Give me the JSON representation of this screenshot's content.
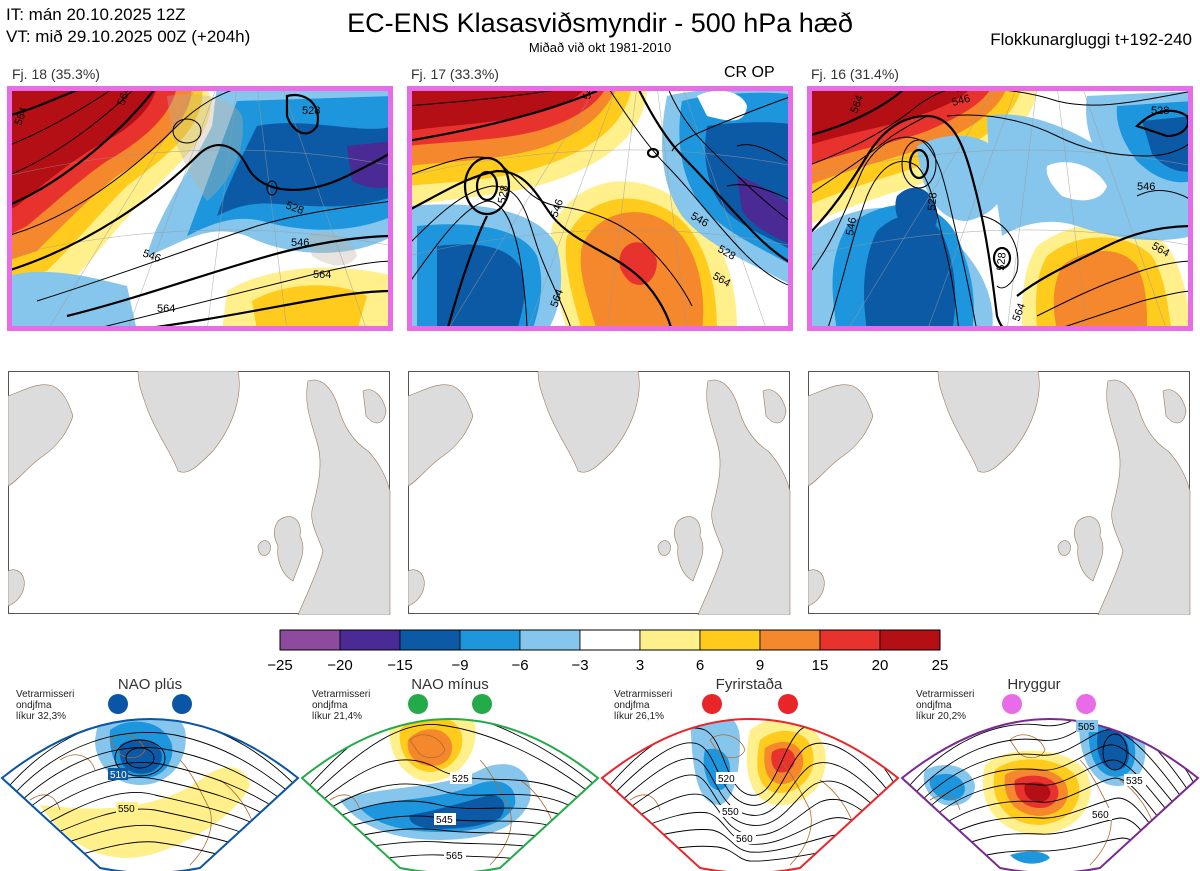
{
  "header": {
    "init_time": "IT: mán 20.10.2025 12Z",
    "valid_time": "VT: mið 29.10.2025 00Z  (+204h)",
    "title": "EC-ENS Klasasviðsmyndir - 500 hPa hæð",
    "subtitle": "Miðað við okt 1981-2010",
    "window": "Flokkunargluggi t+192-240"
  },
  "clusters": [
    {
      "label": "Fj. 18 (35.3%)",
      "contours": [
        "564",
        "564",
        "546",
        "528",
        "564",
        "546",
        "528",
        "564"
      ]
    },
    {
      "label": "Fj. 17 (33.3%)",
      "op_label": "CR OP",
      "contours": [
        "528",
        "546",
        "564",
        "546",
        "528",
        "564",
        "546"
      ]
    },
    {
      "label": "Fj. 16 (31.4%)",
      "contours": [
        "564",
        "546",
        "528",
        "528",
        "546",
        "528",
        "546",
        "564",
        "564"
      ]
    }
  ],
  "colorbar": {
    "ticks": [
      "−25",
      "−20",
      "−15",
      "−9",
      "−6",
      "−3",
      "3",
      "6",
      "9",
      "15",
      "20",
      "25"
    ],
    "colors": [
      "#8e4a9c",
      "#4a2a94",
      "#0c5aa6",
      "#1e96de",
      "#86c6ec",
      "#ffffff",
      "#fff08c",
      "#ffcc1e",
      "#f5872c",
      "#e8322e",
      "#b40f14"
    ]
  },
  "regimes": [
    {
      "name": "NAO plús",
      "note": [
        "Vetrarmisseri",
        "ondjfma",
        "líkur 32,3%"
      ],
      "color": "#0a55a5",
      "contours": [
        "510",
        "550"
      ]
    },
    {
      "name": "NAO mínus",
      "note": [
        "Vetrarmisseri",
        "ondjfma",
        "líkur 21,4%"
      ],
      "color": "#25aa4a",
      "contours": [
        "525",
        "545",
        "565"
      ]
    },
    {
      "name": "Fyrirstaða",
      "note": [
        "Vetrarmisseri",
        "ondjfma",
        "líkur 26,1%"
      ],
      "color": "#e8262a",
      "contours": [
        "520",
        "550",
        "560"
      ]
    },
    {
      "name": "Hryggur",
      "note": [
        "Vetrarmisseri",
        "ondjfma",
        "líkur 20,2%"
      ],
      "color": "#e86ce8",
      "contours": [
        "505",
        "535",
        "560"
      ]
    }
  ]
}
